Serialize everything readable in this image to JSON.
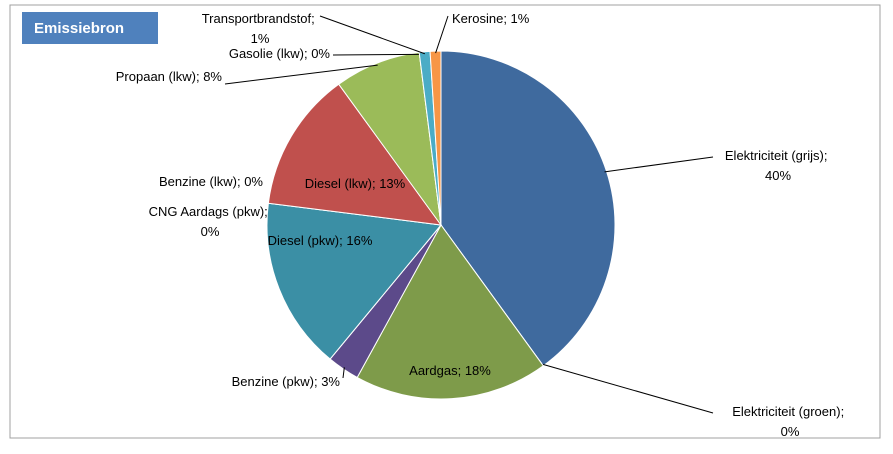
{
  "chart_data": {
    "type": "pie",
    "title": "Emissiebron",
    "categories": [
      "Elektriciteit (grijs)",
      "Elektriciteit (groen)",
      "Aardgas",
      "Benzine (pkw)",
      "CNG Aardags (pkw)",
      "Diesel (pkw)",
      "Benzine (lkw)",
      "Diesel (lkw)",
      "Propaan (lkw)",
      "Gasolie (lkw)",
      "Transportbrandstof",
      "Kerosine"
    ],
    "values": [
      40,
      0,
      18,
      3,
      0,
      16,
      0,
      13,
      8,
      0,
      1,
      1
    ],
    "value_labels": [
      "40%",
      "0%",
      "18%",
      "3%",
      "0%",
      "16%",
      "0%",
      "13%",
      "8%",
      "0%",
      "1%",
      "1%"
    ],
    "label_separator": "; ",
    "colors": [
      "#3f6a9e",
      "#9bbb59",
      "#7e9b4a",
      "#5c4a8a",
      "#8064a2",
      "#3b8fa5",
      "#e0a060",
      "#c0504d",
      "#9bbb59",
      "#4f81bd",
      "#4bacc6",
      "#f79646"
    ]
  }
}
